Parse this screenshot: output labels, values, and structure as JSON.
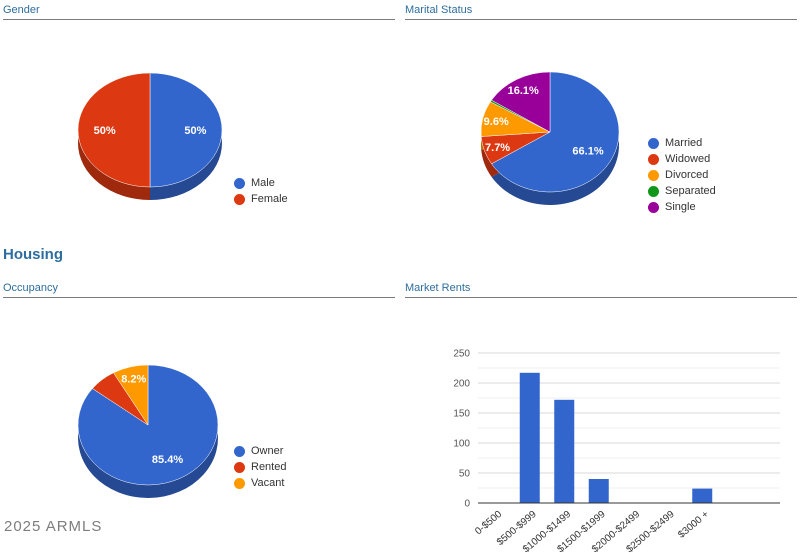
{
  "page": {
    "watermark": "2025 ARMLS"
  },
  "sections": {
    "gender": {
      "title": "Gender"
    },
    "marital_status": {
      "title": "Marital Status"
    },
    "housing_heading": "Housing",
    "occupancy": {
      "title": "Occupancy"
    },
    "market_rents": {
      "title": "Market Rents"
    }
  },
  "colors": {
    "blue": "#3366CC",
    "red": "#DC3912",
    "orange": "#FF9900",
    "green": "#109618",
    "purple": "#990099",
    "header_blue": "#2e6e9e",
    "grid_major": "#d9d9d9",
    "grid_minor": "#efefef",
    "axis_baseline": "#333333"
  },
  "chart_data": [
    {
      "id": "gender",
      "type": "pie",
      "title": "Gender",
      "legend_position": "right",
      "slices": [
        {
          "label": "Male",
          "value": 50,
          "pct_label": "50%",
          "color": "#3366CC"
        },
        {
          "label": "Female",
          "value": 50,
          "pct_label": "50%",
          "color": "#DC3912"
        }
      ]
    },
    {
      "id": "marital_status",
      "type": "pie",
      "title": "Marital Status",
      "legend_position": "right",
      "slices": [
        {
          "label": "Married",
          "value": 66.1,
          "pct_label": "66.1%",
          "color": "#3366CC"
        },
        {
          "label": "Widowed",
          "value": 7.7,
          "pct_label": "7.7%",
          "color": "#DC3912"
        },
        {
          "label": "Divorced",
          "value": 9.6,
          "pct_label": "9.6%",
          "color": "#FF9900"
        },
        {
          "label": "Separated",
          "value": 0.5,
          "pct_label": "",
          "color": "#109618"
        },
        {
          "label": "Single",
          "value": 16.1,
          "pct_label": "16.1%",
          "color": "#990099"
        }
      ]
    },
    {
      "id": "occupancy",
      "type": "pie",
      "title": "Occupancy",
      "legend_position": "right",
      "slices": [
        {
          "label": "Owner",
          "value": 85.4,
          "pct_label": "85.4%",
          "color": "#3366CC"
        },
        {
          "label": "Rented",
          "value": 6.4,
          "pct_label": "",
          "color": "#DC3912"
        },
        {
          "label": "Vacant",
          "value": 8.2,
          "pct_label": "8.2%",
          "color": "#FF9900"
        }
      ]
    },
    {
      "id": "market_rents",
      "type": "bar",
      "title": "Market Rents",
      "categories": [
        "0-$500",
        "$500-$999",
        "$1000-$1499",
        "$1500-$1999",
        "$2000-$2499",
        "$2500-$2499",
        "$3000 +"
      ],
      "values": [
        0,
        217,
        172,
        40,
        0,
        0,
        24
      ],
      "bar_color": "#3366CC",
      "ylim": [
        0,
        250
      ],
      "yticks": [
        0,
        50,
        100,
        150,
        200,
        250
      ],
      "minor_step": 25,
      "grid": true,
      "legend_position": "none"
    }
  ]
}
